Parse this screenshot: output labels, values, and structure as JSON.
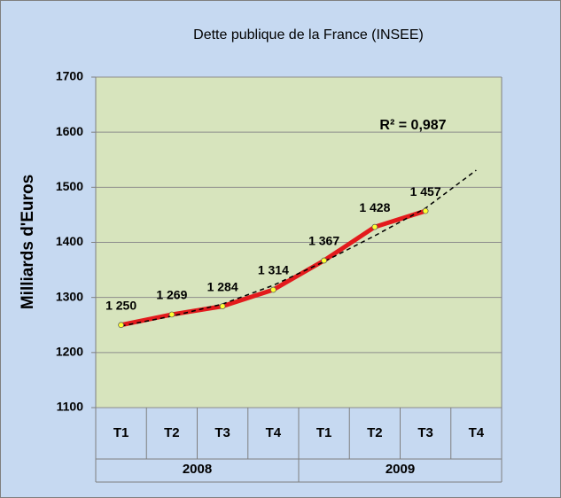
{
  "chart_data": {
    "type": "line",
    "title": "Dette publique de la France (INSEE)",
    "y_label": "Milliards d'Euros",
    "annotation": "R² = 0,987",
    "categories": [
      "T1",
      "T2",
      "T3",
      "T4",
      "T1",
      "T2",
      "T3",
      "T4"
    ],
    "x_groups": [
      "2008",
      "2009"
    ],
    "values": [
      1250,
      1269,
      1284,
      1314,
      1367,
      1428,
      1457,
      null
    ],
    "value_labels": [
      "1 250",
      "1 269",
      "1 284",
      "1 314",
      "1 367",
      "1 428",
      "1 457",
      null
    ],
    "color": "#e31a1c",
    "marker_color": "#ffff33",
    "trendline": {
      "values": [
        1248,
        1266,
        1288,
        1322,
        1365,
        1412,
        1462,
        1531
      ],
      "color": "#000000"
    },
    "ylim": [
      1100,
      1700
    ],
    "yticks": [
      1100,
      1200,
      1300,
      1400,
      1500,
      1600,
      1700
    ],
    "grid": true
  }
}
